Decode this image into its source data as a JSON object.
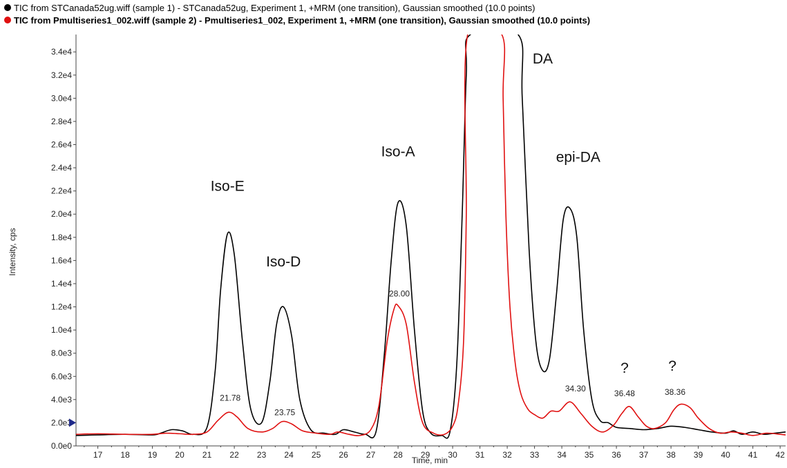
{
  "legend": [
    {
      "label": "TIC from STCanada52ug.wiff (sample 1) - STCanada52ug, Experiment 1, +MRM (one transition), Gaussian smoothed (10.0 points)",
      "color": "#000000",
      "bold": false
    },
    {
      "label": "TIC from Pmultiseries1_002.wiff (sample 2) - Pmultiseries1_002, Experiment 1, +MRM (one transition), Gaussian smoothed (10.0 points)",
      "color": "#e01010",
      "bold": true
    }
  ],
  "chart_data": {
    "type": "line",
    "xlabel": "Time, min",
    "ylabel": "Intensity, cps",
    "xlim": [
      16.2,
      42.2
    ],
    "ylim": [
      0,
      35500
    ],
    "x_ticks": [
      "17",
      "18",
      "19",
      "20",
      "21",
      "22",
      "23",
      "24",
      "25",
      "26",
      "27",
      "28",
      "29",
      "30",
      "31",
      "32",
      "33",
      "34",
      "35",
      "36",
      "37",
      "38",
      "39",
      "40",
      "41",
      "42"
    ],
    "y_ticks": [
      {
        "value": 0,
        "label": "0.0e0"
      },
      {
        "value": 2000,
        "label": "2.0e3"
      },
      {
        "value": 4000,
        "label": "4.0e3"
      },
      {
        "value": 6000,
        "label": "6.0e3"
      },
      {
        "value": 8000,
        "label": "8.0e3"
      },
      {
        "value": 10000,
        "label": "1.0e4"
      },
      {
        "value": 12000,
        "label": "1.2e4"
      },
      {
        "value": 14000,
        "label": "1.4e4"
      },
      {
        "value": 16000,
        "label": "1.6e4"
      },
      {
        "value": 18000,
        "label": "1.8e4"
      },
      {
        "value": 20000,
        "label": "2.0e4"
      },
      {
        "value": 22000,
        "label": "2.2e4"
      },
      {
        "value": 24000,
        "label": "2.4e4"
      },
      {
        "value": 26000,
        "label": "2.6e4"
      },
      {
        "value": 28000,
        "label": "2.8e4"
      },
      {
        "value": 30000,
        "label": "3.0e4"
      },
      {
        "value": 32000,
        "label": "3.2e4"
      },
      {
        "value": 34000,
        "label": "3.4e4"
      }
    ],
    "series": [
      {
        "color": "#000000",
        "x": [
          16.2,
          17,
          18,
          19,
          19.3,
          19.7,
          20.1,
          20.5,
          21.0,
          21.3,
          21.5,
          21.75,
          22.0,
          22.3,
          22.6,
          23.0,
          23.3,
          23.55,
          23.8,
          24.1,
          24.4,
          24.8,
          25.3,
          25.7,
          26.0,
          26.4,
          26.8,
          27.2,
          27.5,
          27.75,
          28.0,
          28.3,
          28.6,
          28.9,
          29.2,
          29.6,
          29.9,
          30.15,
          30.35,
          30.5,
          30.65,
          32.4,
          32.55,
          32.8,
          33.05,
          33.3,
          33.55,
          33.8,
          34.05,
          34.3,
          34.55,
          34.8,
          35.1,
          35.4,
          35.7,
          36.0,
          36.5,
          37.0,
          37.5,
          38.0,
          38.5,
          39.0,
          39.5,
          40.0,
          40.3,
          40.6,
          41.0,
          41.4,
          41.8,
          42.2
        ],
        "y": [
          900,
          950,
          1000,
          950,
          1100,
          1400,
          1300,
          1000,
          1600,
          6500,
          13500,
          18300,
          16500,
          9000,
          3200,
          2000,
          5500,
          10500,
          12000,
          9500,
          4000,
          1400,
          1100,
          1000,
          1400,
          1200,
          1000,
          1300,
          8000,
          16000,
          21000,
          19000,
          10000,
          3000,
          1100,
          900,
          1200,
          7000,
          20000,
          32000,
          35500,
          35500,
          30000,
          17000,
          9000,
          6500,
          7500,
          13000,
          19500,
          20500,
          18000,
          10000,
          4000,
          2200,
          2000,
          1600,
          1500,
          1400,
          1500,
          1700,
          1600,
          1400,
          1200,
          1100,
          1300,
          1000,
          1200,
          1000,
          1100,
          1200
        ]
      },
      {
        "color": "#e01010",
        "x": [
          16.2,
          17,
          18,
          19,
          19.5,
          20,
          20.5,
          21.0,
          21.4,
          21.78,
          22.1,
          22.5,
          23.0,
          23.4,
          23.75,
          24.1,
          24.5,
          25.0,
          25.5,
          25.8,
          26.2,
          26.6,
          27.0,
          27.3,
          27.6,
          27.85,
          28.0,
          28.3,
          28.6,
          28.9,
          29.3,
          29.7,
          30.0,
          30.2,
          30.4,
          30.5,
          30.55,
          31.8,
          31.85,
          31.95,
          32.1,
          32.3,
          32.5,
          32.75,
          33.0,
          33.3,
          33.6,
          33.9,
          34.3,
          34.7,
          35.1,
          35.5,
          35.9,
          36.2,
          36.48,
          36.8,
          37.1,
          37.4,
          37.8,
          38.1,
          38.36,
          38.7,
          39.0,
          39.4,
          39.8,
          40.2,
          40.6,
          41.0,
          41.5,
          42.0,
          42.2
        ],
        "y": [
          1000,
          1050,
          1000,
          1000,
          1100,
          1050,
          1000,
          1200,
          2200,
          2900,
          2500,
          1500,
          1200,
          1500,
          2100,
          1900,
          1300,
          1100,
          1000,
          1200,
          1000,
          900,
          1400,
          3500,
          9000,
          11800,
          12100,
          10500,
          5500,
          2000,
          1100,
          1000,
          1700,
          3500,
          9000,
          20000,
          35500,
          35500,
          30000,
          20000,
          12000,
          7000,
          4500,
          3200,
          2700,
          2400,
          3000,
          3000,
          3800,
          2800,
          1700,
          1200,
          1800,
          2800,
          3400,
          2500,
          1700,
          1500,
          2000,
          3100,
          3600,
          3300,
          2400,
          1500,
          1100,
          1200,
          1100,
          900,
          1100,
          1000,
          950
        ]
      }
    ],
    "peak_names": [
      {
        "text": "Iso-E",
        "x": 21.75,
        "y": 22000
      },
      {
        "text": "Iso-D",
        "x": 23.8,
        "y": 15500
      },
      {
        "text": "Iso-A",
        "x": 28.0,
        "y": 25000
      },
      {
        "text": "DA",
        "x": 33.3,
        "y": 33000
      },
      {
        "text": "epi-DA",
        "x": 34.6,
        "y": 24500
      },
      {
        "text": "?",
        "x": 36.3,
        "y": 6300
      },
      {
        "text": "?",
        "x": 38.05,
        "y": 6500
      }
    ],
    "peak_values": [
      {
        "text": "21.78",
        "x": 21.85,
        "y": 3900
      },
      {
        "text": "23.75",
        "x": 23.85,
        "y": 2650
      },
      {
        "text": "28.00",
        "x": 28.05,
        "y": 12900
      },
      {
        "text": "34.30",
        "x": 34.5,
        "y": 4700
      },
      {
        "text": "36.48",
        "x": 36.3,
        "y": 4300
      },
      {
        "text": "38.36",
        "x": 38.15,
        "y": 4400
      }
    ],
    "marker_y": 2000
  }
}
